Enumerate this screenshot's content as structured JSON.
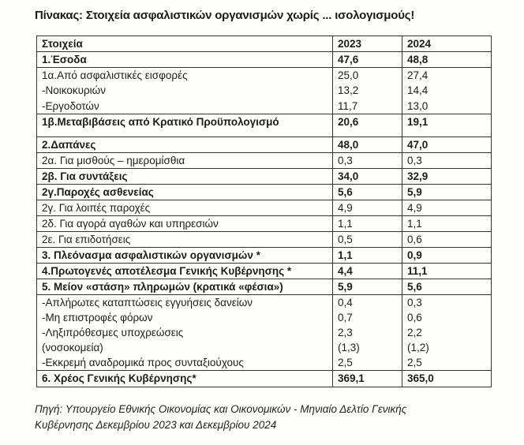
{
  "title": "Πίνακας: Στοιχεία ασφαλιστικών οργανισμών χωρίς ... ισολογισμούς!",
  "table": {
    "headers": [
      "Στοιχεία",
      "2023",
      "2024"
    ],
    "rows": [
      {
        "bold": true,
        "lines": [
          {
            "label": "1.Έσοδα",
            "v2023": "47,6",
            "v2024": "48,8"
          }
        ]
      },
      {
        "bold": false,
        "lines": [
          {
            "label": "1α.Από ασφαλιστικές εισφορές",
            "v2023": "25,0",
            "v2024": "27,4"
          },
          {
            "label": "-Νοικοκυριών",
            "v2023": "13,2",
            "v2024": "14,4"
          },
          {
            "label": "-Εργοδοτών",
            "v2023": "11,7",
            "v2024": "13,0"
          }
        ]
      },
      {
        "bold": true,
        "lines": [
          {
            "label": "1β.Μεταβιβάσεις από Κρατικό Προϋπολογισμό",
            "v2023": "20,6",
            "v2024": "19,1"
          }
        ]
      },
      {
        "bold": true,
        "lines": [
          {
            "label": "2.Δαπάνες",
            "v2023": "48,0",
            "v2024": "47,0"
          }
        ]
      },
      {
        "bold": false,
        "lines": [
          {
            "label": "2α. Για  μισθούς – ημερομίσθια",
            "v2023": "0,3",
            "v2024": "0,3"
          }
        ]
      },
      {
        "bold": true,
        "lines": [
          {
            "label": "2β. Για συντάξεις",
            "v2023": "34,0",
            "v2024": "32,9"
          }
        ]
      },
      {
        "bold": true,
        "lines": [
          {
            "label": "2γ.Παροχές ασθενείας",
            "v2023": "5,6",
            "v2024": "5,9"
          }
        ]
      },
      {
        "bold": false,
        "lines": [
          {
            "label": "2γ. Για λοιπές παροχές",
            "v2023": "4,9",
            "v2024": "4,9"
          }
        ]
      },
      {
        "bold": false,
        "lines": [
          {
            "label": "2δ. Για αγορά αγαθών και υπηρεσιών",
            "v2023": "1,1",
            "v2024": "1,1"
          }
        ]
      },
      {
        "bold": false,
        "lines": [
          {
            "label": "2ε. Για επιδοτήσεις",
            "v2023": "0,5",
            "v2024": "0,6"
          }
        ]
      },
      {
        "bold": true,
        "lines": [
          {
            "label": "3. Πλεόνασμα ασφαλιστικών οργανισμών *",
            "v2023": "1,1",
            "v2024": "0,9"
          }
        ]
      },
      {
        "bold": true,
        "lines": [
          {
            "label": "4.Πρωτογενές αποτέλεσμα Γενικής Κυβέρνησης *",
            "v2023": "4,4",
            "v2024": "11,1"
          }
        ]
      },
      {
        "bold": true,
        "lines": [
          {
            "label": "5. Μείον «στάση» πληρωμών (κρατικά «φέσια»)",
            "v2023": "5,9",
            "v2024": "5,6"
          }
        ]
      },
      {
        "bold": false,
        "lines": [
          {
            "label": "-Απλήρωτες καταπτώσεις  εγγυήσεις δανείων",
            "v2023": "0,4",
            "v2024": "0,3"
          },
          {
            "label": "-Μη επιστροφές φόρων",
            "v2023": "0,7",
            "v2024": "0,6"
          },
          {
            "label": "-Ληξιπρόθεσμες υποχρεώσεις",
            "v2023": "2,3",
            "v2024": "2,2"
          },
          {
            "label": "(νοσοκομεία)",
            "v2023": "(1,3)",
            "v2024": "(1,2)"
          },
          {
            "label": "-Εκκρεμή αναδρομικά προς συνταξιούχους",
            "v2023": "2,5",
            "v2024": "2,5"
          }
        ]
      },
      {
        "bold": true,
        "lines": [
          {
            "label": "6. Χρέος Γενικής Κυβέρνησης*",
            "v2023": "369,1",
            "v2024": "365,0"
          }
        ]
      }
    ]
  },
  "source": {
    "line1": "Πηγή: Υπουργείο Εθνικής Οικονομίας και Οικονομικών - Μηνιαίο Δελτίο Γενικής",
    "line2": "Κυβέρνησης Δεκεμβρίου 2023 και Δεκεμβρίου 2024"
  }
}
